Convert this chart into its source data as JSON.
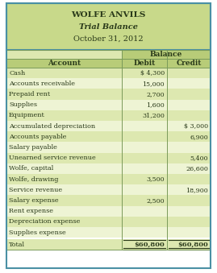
{
  "title1": "WOLFE ANVILS",
  "title2": "Trial Balance",
  "title3": "October 31, 2012",
  "header_bg": "#c8d98a",
  "header_border": "#4a90a4",
  "col_header_bg": "#b8cc78",
  "row_bg_even": "#dde8b0",
  "row_bg_odd": "#eef4d4",
  "total_row_bg": "#dde8b0",
  "accounts": [
    "Cash",
    "Accounts receivable",
    "Prepaid rent",
    "Supplies",
    "Equipment",
    "Accumulated depreciation",
    "Accounts payable",
    "Salary payable",
    "Unearned service revenue",
    "Wolfe, capital",
    "Wolfe, drawing",
    "Service revenue",
    "Salary expense",
    "Rent expense",
    "Depreciation expense",
    "Supplies expense"
  ],
  "debits": [
    "$ 4,300",
    "15,000",
    "2,700",
    "1,600",
    "31,200",
    "",
    "",
    "",
    "",
    "",
    "3,500",
    "",
    "2,500",
    "",
    "",
    ""
  ],
  "credits": [
    "",
    "",
    "",
    "",
    "",
    "$ 3,000",
    "6,900",
    "",
    "5,400",
    "26,600",
    "",
    "18,900",
    "",
    "",
    "",
    ""
  ],
  "total_debit": "$60,800",
  "total_credit": "$60,800",
  "text_color": "#2a3a1a",
  "border_color": "#7a9a5a"
}
